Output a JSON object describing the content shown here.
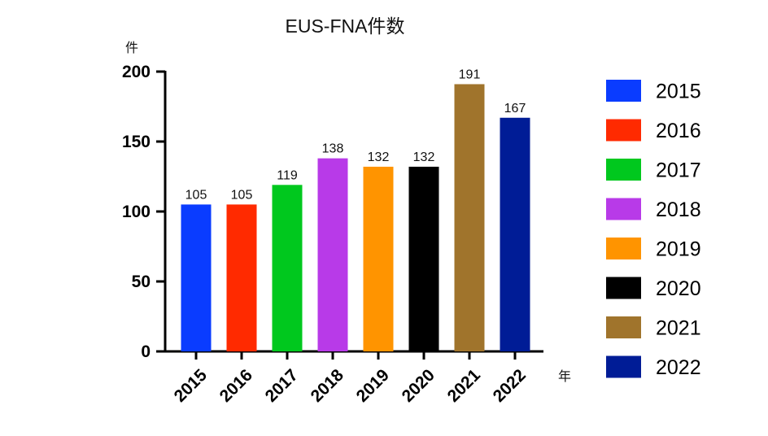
{
  "chart_data": {
    "type": "bar",
    "title": "EUS-FNA件数",
    "ylabel": "件",
    "xlabel": "年",
    "categories": [
      "2015",
      "2016",
      "2017",
      "2018",
      "2019",
      "2020",
      "2021",
      "2022"
    ],
    "values": [
      105,
      105,
      119,
      138,
      132,
      132,
      191,
      167
    ],
    "colors": [
      "#0a3cff",
      "#ff2a00",
      "#00c81e",
      "#b83ae8",
      "#ff9400",
      "#000000",
      "#a0742c",
      "#001c96"
    ],
    "ylim": [
      0,
      200
    ],
    "yticks": [
      "0",
      "50",
      "100",
      "150",
      "200"
    ],
    "grid": false,
    "legend": {
      "position": "right",
      "entries": [
        "2015",
        "2016",
        "2017",
        "2018",
        "2019",
        "2020",
        "2021",
        "2022"
      ]
    }
  }
}
